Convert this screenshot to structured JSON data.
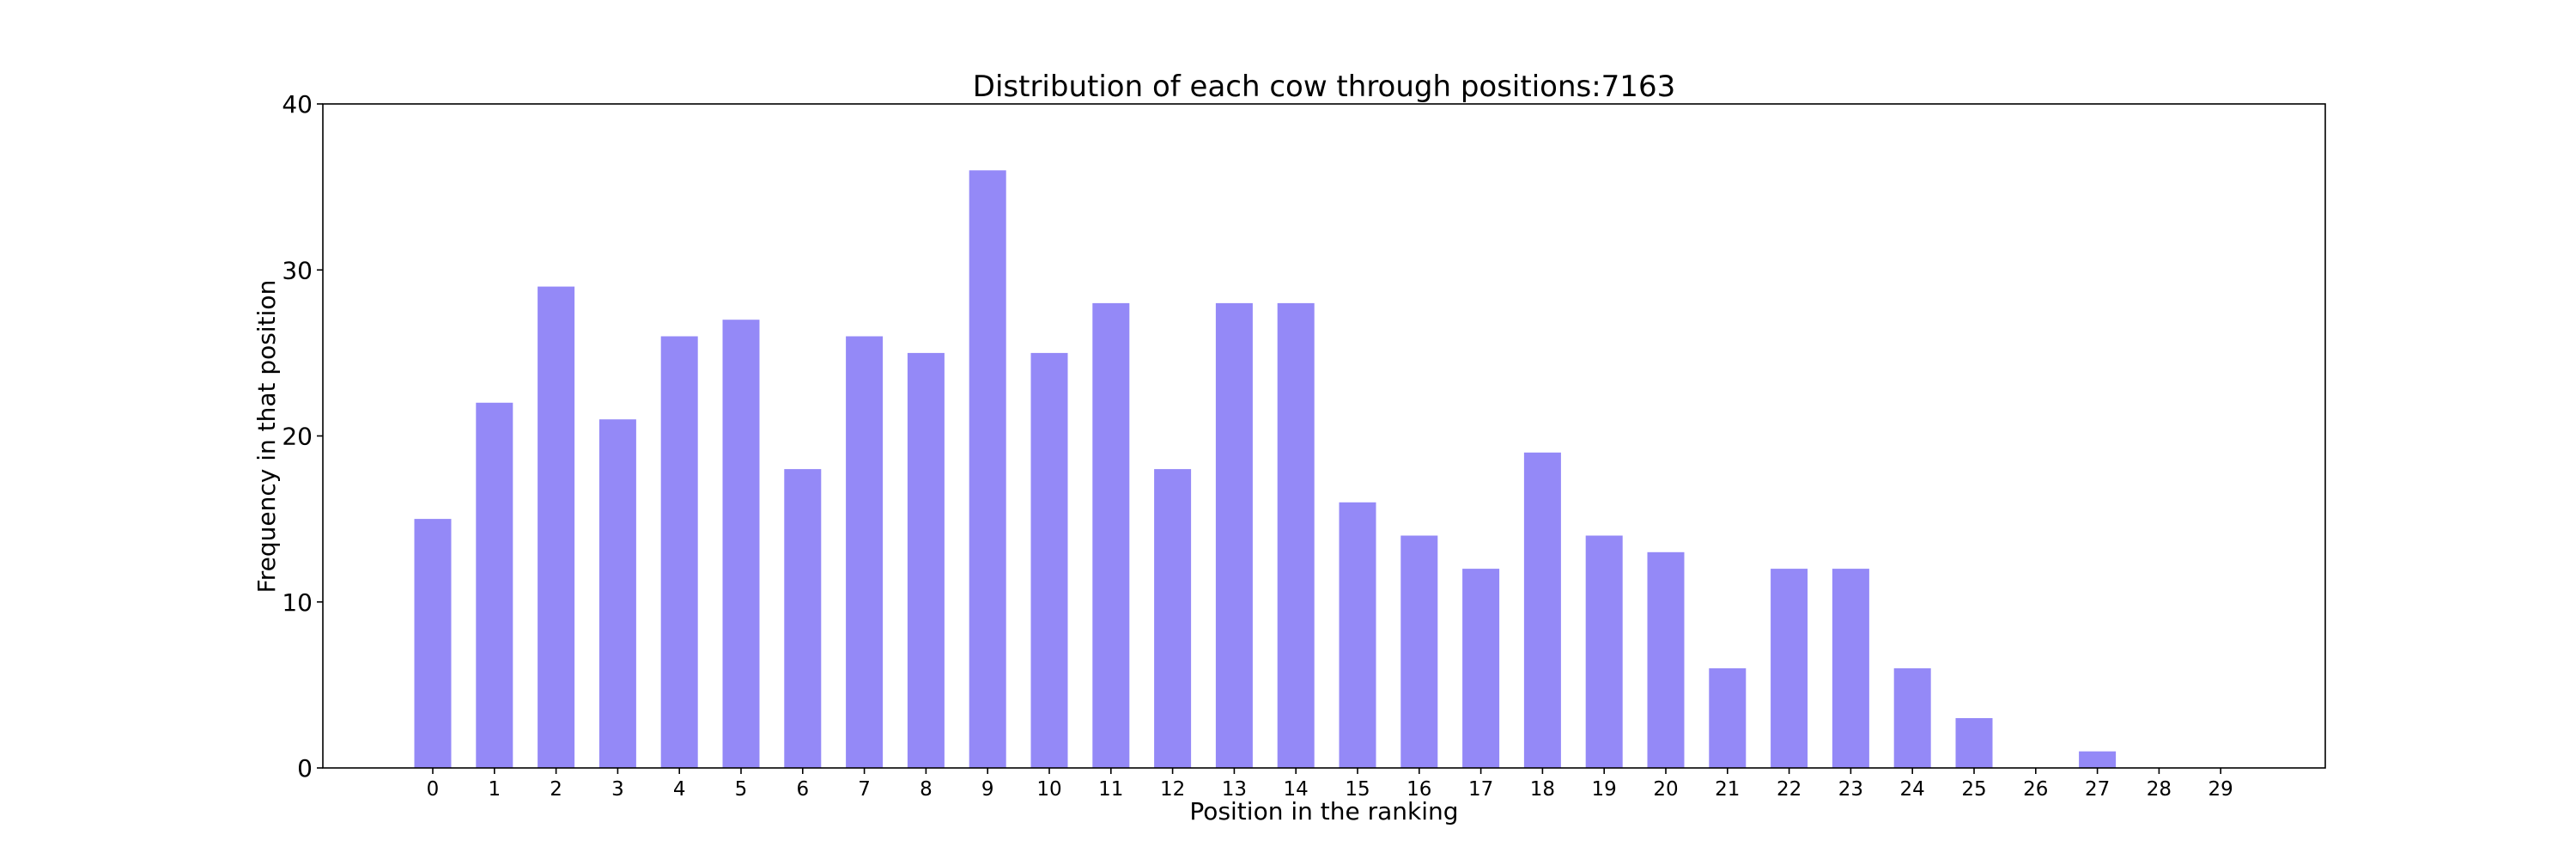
{
  "chart_data": {
    "type": "bar",
    "title": "Distribution of each cow through positions:7163",
    "xlabel": "Position in the ranking",
    "ylabel": "Frequency in that position",
    "categories": [
      "0",
      "1",
      "2",
      "3",
      "4",
      "5",
      "6",
      "7",
      "8",
      "9",
      "10",
      "11",
      "12",
      "13",
      "14",
      "15",
      "16",
      "17",
      "18",
      "19",
      "20",
      "21",
      "22",
      "23",
      "24",
      "25",
      "26",
      "27",
      "28",
      "29"
    ],
    "values": [
      15,
      22,
      29,
      21,
      26,
      27,
      18,
      26,
      25,
      36,
      25,
      28,
      18,
      28,
      28,
      16,
      14,
      12,
      19,
      14,
      13,
      6,
      12,
      12,
      6,
      3,
      0,
      1,
      0,
      0
    ],
    "ylim": [
      0,
      40
    ],
    "yticks": [
      "0",
      "10",
      "20",
      "30",
      "40"
    ],
    "bar_color": "#9489f7",
    "grid": false,
    "legend": "none"
  }
}
